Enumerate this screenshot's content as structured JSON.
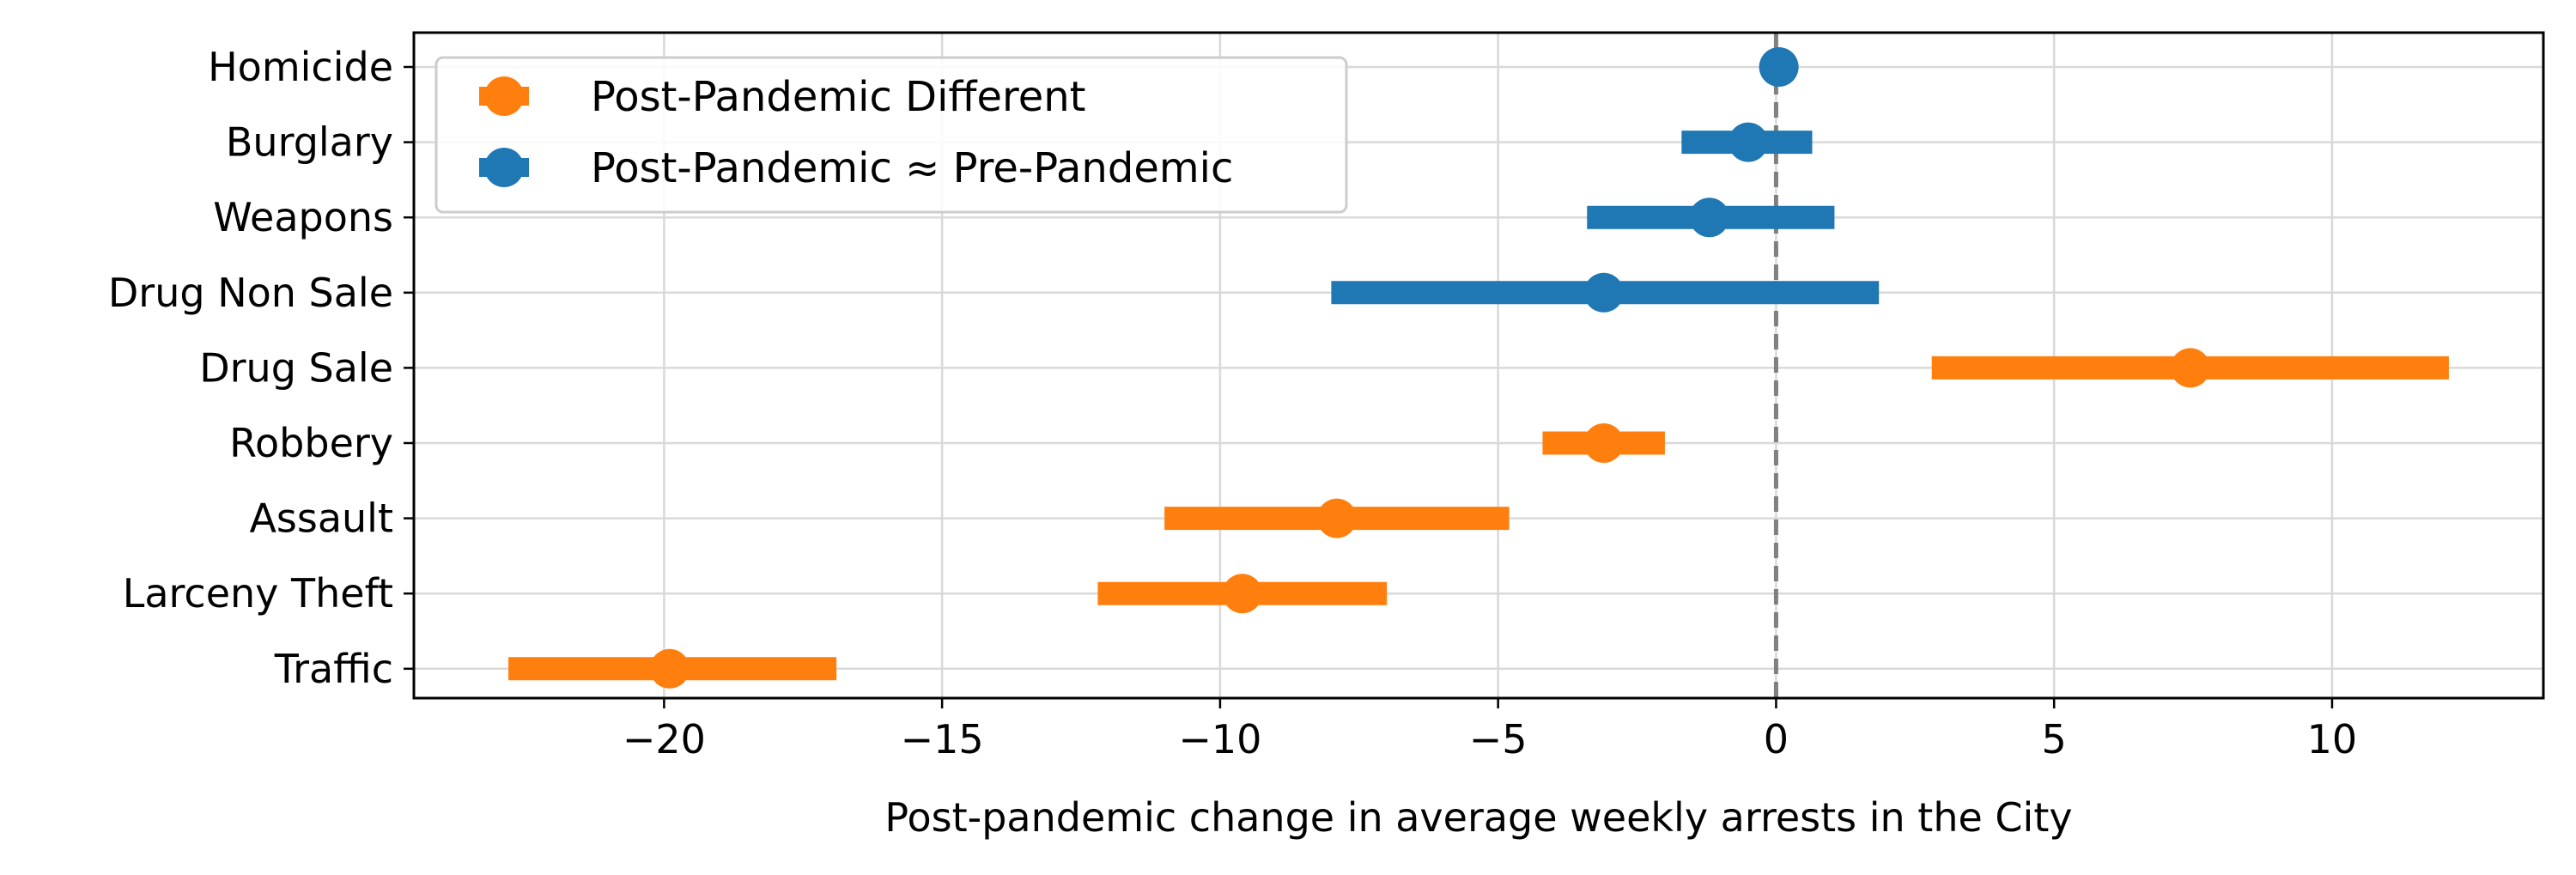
{
  "chart_data": {
    "type": "scatter",
    "subtype": "dot-and-interval",
    "title": "",
    "xlabel": "Post-pandemic change in average weekly arrests in the City",
    "ylabel": "",
    "xlim": [
      -24.5,
      13.8
    ],
    "xticks": [
      -20,
      -15,
      -10,
      -5,
      0,
      5,
      10
    ],
    "xtick_labels": [
      "−20",
      "−15",
      "−10",
      "−5",
      "0",
      "5",
      "10"
    ],
    "grid": true,
    "legend_position": "top-left",
    "reference_line": {
      "x": 0,
      "style": "dashed",
      "color": "#808080"
    },
    "categories": [
      "Homicide",
      "Burglary",
      "Weapons",
      "Drug Non Sale",
      "Drug Sale",
      "Robbery",
      "Assault",
      "Larceny Theft",
      "Traffic"
    ],
    "series": [
      {
        "name": "Post-Pandemic Different",
        "color": "#ff7f0e",
        "points": [
          {
            "category": "Drug Sale",
            "estimate": 7.45,
            "low": 2.8,
            "high": 12.1
          },
          {
            "category": "Robbery",
            "estimate": -3.1,
            "low": -4.2,
            "high": -2.0
          },
          {
            "category": "Assault",
            "estimate": -7.9,
            "low": -11.0,
            "high": -4.8
          },
          {
            "category": "Larceny Theft",
            "estimate": -9.6,
            "low": -12.2,
            "high": -7.0
          },
          {
            "category": "Traffic",
            "estimate": -19.9,
            "low": -22.8,
            "high": -16.9
          }
        ]
      },
      {
        "name": "Post-Pandemic ≈ Pre-Pandemic",
        "color": "#1f77b4",
        "points": [
          {
            "category": "Homicide",
            "estimate": 0.05,
            "low": 0.05,
            "high": 0.05
          },
          {
            "category": "Burglary",
            "estimate": -0.5,
            "low": -1.7,
            "high": 0.65
          },
          {
            "category": "Weapons",
            "estimate": -1.2,
            "low": -3.4,
            "high": 1.05
          },
          {
            "category": "Drug Non Sale",
            "estimate": -3.1,
            "low": -8.0,
            "high": 1.85
          }
        ]
      }
    ]
  }
}
